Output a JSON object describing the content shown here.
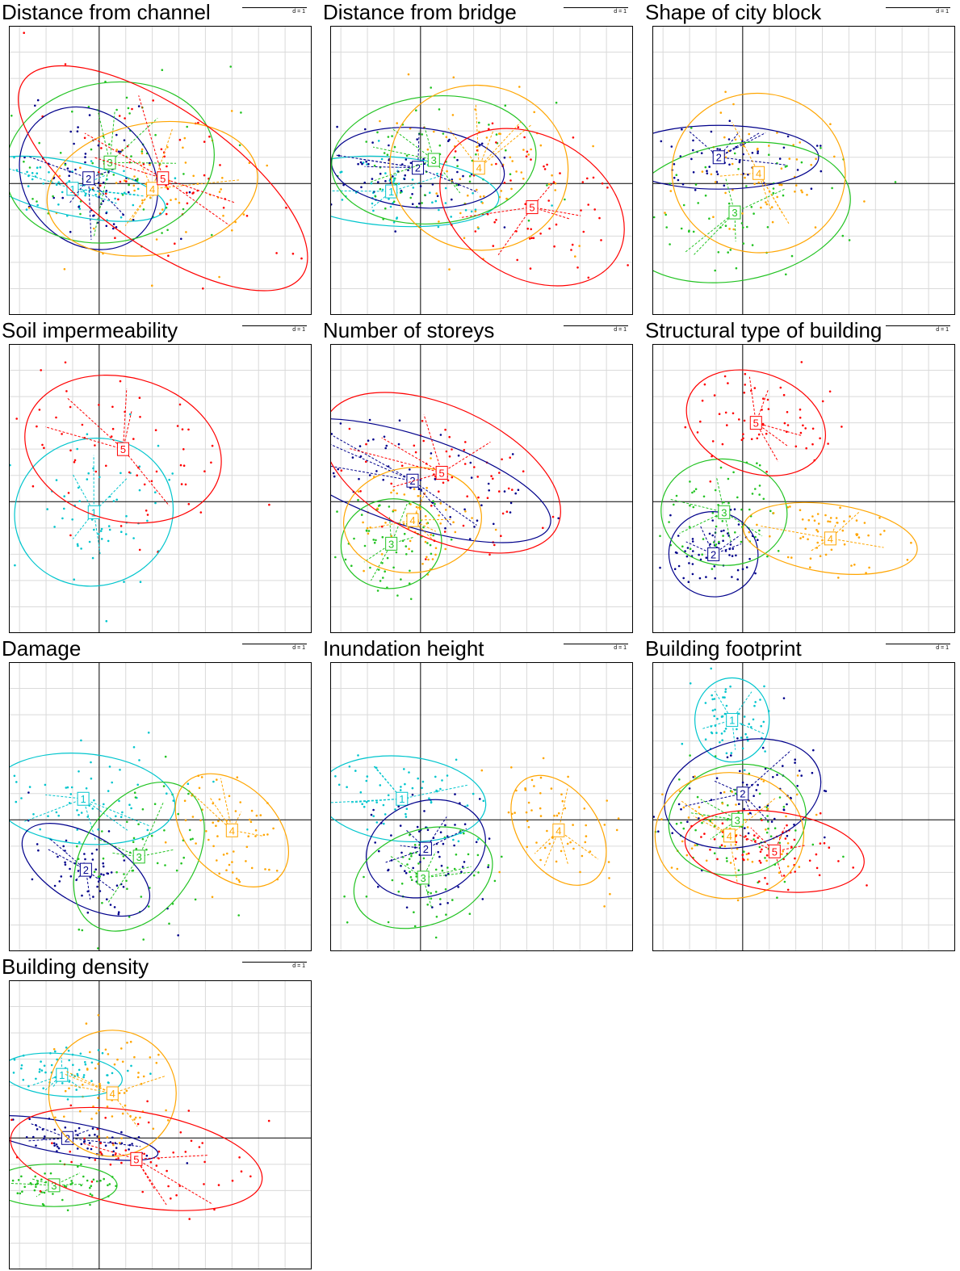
{
  "chart_data": [
    {
      "type": "scatter",
      "title": "Distance from channel",
      "scale_label": "d = 1",
      "xlim": [
        -1.7,
        4.0
      ],
      "ylim": [
        -2.5,
        3.0
      ],
      "grid": true,
      "groups": [
        {
          "label": "1",
          "color": "#00c5cd",
          "center": [
            -0.5,
            -0.1
          ],
          "rx": 0.5,
          "ry": 1.8,
          "angle": 78
        },
        {
          "label": "2",
          "color": "#00008b",
          "center": [
            -0.2,
            0.1
          ],
          "rx": 1.2,
          "ry": 1.45,
          "angle": 40
        },
        {
          "label": "3",
          "color": "#22c322",
          "center": [
            0.2,
            0.4
          ],
          "rx": 1.5,
          "ry": 2.0,
          "angle": 100
        },
        {
          "label": "4",
          "color": "#ffa500",
          "center": [
            1.0,
            -0.1
          ],
          "rx": 2.0,
          "ry": 1.25,
          "angle": 10
        },
        {
          "label": "5",
          "color": "#ff0000",
          "center": [
            1.2,
            0.1
          ],
          "rx": 3.2,
          "ry": 1.3,
          "angle": -35
        }
      ]
    },
    {
      "type": "scatter",
      "title": "Distance from bridge",
      "scale_label": "d = 1",
      "xlim": [
        -1.7,
        4.0
      ],
      "ylim": [
        -2.5,
        3.0
      ],
      "grid": true,
      "groups": [
        {
          "label": "1",
          "color": "#00c5cd",
          "center": [
            -0.55,
            -0.15
          ],
          "rx": 0.65,
          "ry": 2.05,
          "angle": 86
        },
        {
          "label": "2",
          "color": "#00008b",
          "center": [
            -0.05,
            0.3
          ],
          "rx": 0.75,
          "ry": 1.65,
          "angle": 85
        },
        {
          "label": "3",
          "color": "#22c322",
          "center": [
            0.25,
            0.45
          ],
          "rx": 1.2,
          "ry": 1.95,
          "angle": 95
        },
        {
          "label": "4",
          "color": "#ffa500",
          "center": [
            1.1,
            0.3
          ],
          "rx": 1.55,
          "ry": 1.7,
          "angle": 80
        },
        {
          "label": "5",
          "color": "#ff0000",
          "center": [
            2.1,
            -0.45
          ],
          "rx": 1.85,
          "ry": 1.35,
          "angle": -30
        }
      ]
    },
    {
      "type": "scatter",
      "title": "Shape of city block",
      "scale_label": "d = 1",
      "xlim": [
        -1.7,
        4.0
      ],
      "ylim": [
        -2.5,
        3.0
      ],
      "grid": true,
      "groups": [
        {
          "label": "2",
          "color": "#00008b",
          "center": [
            -0.45,
            0.5
          ],
          "rx": 0.6,
          "ry": 1.9,
          "angle": 90
        },
        {
          "label": "3",
          "color": "#22c322",
          "center": [
            -0.15,
            -0.55
          ],
          "rx": 2.2,
          "ry": 1.3,
          "angle": 10
        },
        {
          "label": "4",
          "color": "#ffa500",
          "center": [
            0.3,
            0.2
          ],
          "rx": 1.5,
          "ry": 1.65,
          "angle": 85
        }
      ]
    },
    {
      "type": "scatter",
      "title": "Soil impermeability",
      "scale_label": "d = 1",
      "xlim": [
        -1.7,
        4.0
      ],
      "ylim": [
        -2.5,
        3.0
      ],
      "grid": true,
      "groups": [
        {
          "label": "1",
          "color": "#00c5cd",
          "center": [
            -0.1,
            -0.2
          ],
          "rx": 1.5,
          "ry": 1.4,
          "angle": 15
        },
        {
          "label": "5",
          "color": "#ff0000",
          "center": [
            0.45,
            1.0
          ],
          "rx": 1.35,
          "ry": 1.9,
          "angle": 75
        }
      ]
    },
    {
      "type": "scatter",
      "title": "Number of storeys",
      "scale_label": "d = 1",
      "xlim": [
        -1.7,
        4.0
      ],
      "ylim": [
        -2.5,
        3.0
      ],
      "grid": true,
      "groups": [
        {
          "label": "2",
          "color": "#00008b",
          "center": [
            -0.15,
            0.4
          ],
          "rx": 0.85,
          "ry": 2.75,
          "angle": 72
        },
        {
          "label": "3",
          "color": "#22c322",
          "center": [
            -0.55,
            -0.8
          ],
          "rx": 0.95,
          "ry": 0.85,
          "angle": 10
        },
        {
          "label": "4",
          "color": "#ffa500",
          "center": [
            -0.15,
            -0.35
          ],
          "rx": 1.3,
          "ry": 1.0,
          "angle": 5
        },
        {
          "label": "5",
          "color": "#ff0000",
          "center": [
            0.4,
            0.55
          ],
          "rx": 2.4,
          "ry": 1.25,
          "angle": -25
        }
      ]
    },
    {
      "type": "scatter",
      "title": "Structural type of building",
      "scale_label": "d = 1",
      "xlim": [
        -1.7,
        4.0
      ],
      "ylim": [
        -2.5,
        3.0
      ],
      "grid": true,
      "groups": [
        {
          "label": "2",
          "color": "#00008b",
          "center": [
            -0.55,
            -1.0
          ],
          "rx": 0.8,
          "ry": 0.85,
          "angle": 80
        },
        {
          "label": "3",
          "color": "#22c322",
          "center": [
            -0.35,
            -0.2
          ],
          "rx": 1.0,
          "ry": 1.2,
          "angle": 85
        },
        {
          "label": "4",
          "color": "#ffa500",
          "center": [
            1.65,
            -0.7
          ],
          "rx": 1.65,
          "ry": 0.65,
          "angle": -8
        },
        {
          "label": "5",
          "color": "#ff0000",
          "center": [
            0.25,
            1.5
          ],
          "rx": 1.35,
          "ry": 0.95,
          "angle": -20
        }
      ]
    },
    {
      "type": "scatter",
      "title": "Damage",
      "scale_label": "d = 1",
      "xlim": [
        -1.7,
        4.0
      ],
      "ylim": [
        -2.5,
        3.0
      ],
      "grid": true,
      "groups": [
        {
          "label": "1",
          "color": "#00c5cd",
          "center": [
            -0.3,
            0.4
          ],
          "rx": 0.85,
          "ry": 1.75,
          "angle": 85
        },
        {
          "label": "2",
          "color": "#00008b",
          "center": [
            -0.25,
            -0.95
          ],
          "rx": 0.65,
          "ry": 1.35,
          "angle": 60
        },
        {
          "label": "3",
          "color": "#22c322",
          "center": [
            0.75,
            -0.7
          ],
          "rx": 1.55,
          "ry": 1.05,
          "angle": 55
        },
        {
          "label": "4",
          "color": "#ffa500",
          "center": [
            2.5,
            -0.2
          ],
          "rx": 1.25,
          "ry": 0.85,
          "angle": -45
        }
      ]
    },
    {
      "type": "scatter",
      "title": "Inundation height",
      "scale_label": "d = 1",
      "xlim": [
        -1.7,
        4.0
      ],
      "ylim": [
        -2.5,
        3.0
      ],
      "grid": true,
      "groups": [
        {
          "label": "1",
          "color": "#00c5cd",
          "center": [
            -0.35,
            0.4
          ],
          "rx": 0.8,
          "ry": 1.6,
          "angle": 85
        },
        {
          "label": "2",
          "color": "#00008b",
          "center": [
            0.1,
            -0.55
          ],
          "rx": 1.15,
          "ry": 0.9,
          "angle": 20
        },
        {
          "label": "3",
          "color": "#22c322",
          "center": [
            0.05,
            -1.1
          ],
          "rx": 1.35,
          "ry": 0.9,
          "angle": 20
        },
        {
          "label": "4",
          "color": "#ffa500",
          "center": [
            2.6,
            -0.2
          ],
          "rx": 1.15,
          "ry": 0.75,
          "angle": -55
        }
      ]
    },
    {
      "type": "scatter",
      "title": "Building footprint",
      "scale_label": "d = 1",
      "xlim": [
        -1.7,
        4.0
      ],
      "ylim": [
        -2.5,
        3.0
      ],
      "grid": true,
      "groups": [
        {
          "label": "1",
          "color": "#00c5cd",
          "center": [
            -0.2,
            1.9
          ],
          "rx": 0.7,
          "ry": 0.8,
          "angle": 0
        },
        {
          "label": "2",
          "color": "#00008b",
          "center": [
            0.0,
            0.5
          ],
          "rx": 1.5,
          "ry": 1.0,
          "angle": 15
        },
        {
          "label": "3",
          "color": "#22c322",
          "center": [
            -0.1,
            0.0
          ],
          "rx": 1.3,
          "ry": 1.05,
          "angle": 10
        },
        {
          "label": "4",
          "color": "#ffa500",
          "center": [
            -0.25,
            -0.3
          ],
          "rx": 1.4,
          "ry": 1.2,
          "angle": 0
        },
        {
          "label": "5",
          "color": "#ff0000",
          "center": [
            0.6,
            -0.6
          ],
          "rx": 1.7,
          "ry": 0.75,
          "angle": -8
        }
      ]
    },
    {
      "type": "scatter",
      "title": "Building density",
      "scale_label": "d = 1",
      "xlim": [
        -1.7,
        4.0
      ],
      "ylim": [
        -2.5,
        3.0
      ],
      "grid": true,
      "groups": [
        {
          "label": "1",
          "color": "#00c5cd",
          "center": [
            -0.7,
            1.2
          ],
          "rx": 0.4,
          "ry": 1.15,
          "angle": 85
        },
        {
          "label": "2",
          "color": "#00008b",
          "center": [
            -0.6,
            0.0
          ],
          "rx": 0.3,
          "ry": 1.75,
          "angle": 80
        },
        {
          "label": "3",
          "color": "#22c322",
          "center": [
            -0.85,
            -0.9
          ],
          "rx": 0.4,
          "ry": 1.2,
          "angle": 90
        },
        {
          "label": "4",
          "color": "#ffa500",
          "center": [
            0.25,
            0.85
          ],
          "rx": 1.2,
          "ry": 1.2,
          "angle": 0
        },
        {
          "label": "5",
          "color": "#ff0000",
          "center": [
            0.7,
            -0.4
          ],
          "rx": 2.4,
          "ry": 0.9,
          "angle": -10
        }
      ]
    }
  ]
}
